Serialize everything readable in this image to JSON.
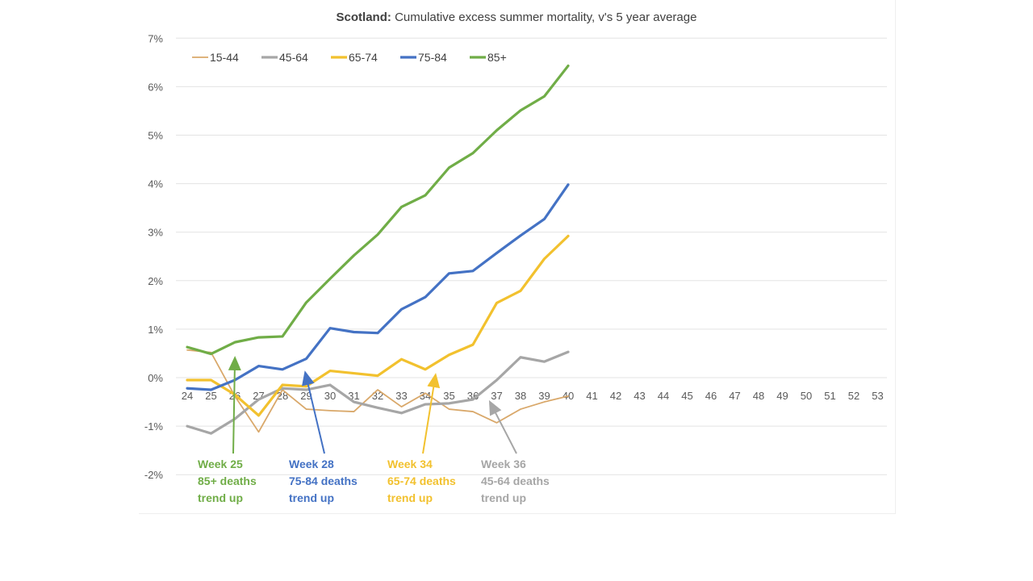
{
  "chart_data": {
    "type": "line",
    "title_bold": "Scotland:",
    "title_rest": "Cumulative excess summer mortality, v's 5 year average",
    "x_ticks": [
      "24",
      "25",
      "26",
      "27",
      "28",
      "29",
      "30",
      "31",
      "32",
      "33",
      "34",
      "35",
      "36",
      "37",
      "38",
      "39",
      "40",
      "41",
      "42",
      "43",
      "44",
      "45",
      "46",
      "47",
      "48",
      "49",
      "50",
      "51",
      "52",
      "53"
    ],
    "y_ticks": [
      "7%",
      "6%",
      "5%",
      "4%",
      "3%",
      "2%",
      "1%",
      "0%",
      "-1%",
      "-2%"
    ],
    "ylim": [
      -2,
      7
    ],
    "xlim": [
      24,
      53
    ],
    "grid": true,
    "legend_position": "top-left",
    "series": [
      {
        "name": "15-44",
        "color": "#d9a86a",
        "x": [
          24,
          25,
          26,
          27,
          28,
          29,
          30,
          31,
          32,
          33,
          34,
          35,
          36,
          37,
          38,
          39,
          40
        ],
        "values": [
          0.57,
          0.52,
          -0.38,
          -1.12,
          -0.25,
          -0.65,
          -0.68,
          -0.7,
          -0.25,
          -0.6,
          -0.32,
          -0.65,
          -0.7,
          -0.93,
          -0.65,
          -0.5,
          -0.38
        ]
      },
      {
        "name": "45-64",
        "color": "#a6a6a6",
        "x": [
          24,
          25,
          26,
          27,
          28,
          29,
          30,
          31,
          32,
          33,
          34,
          35,
          36,
          37,
          38,
          39,
          40
        ],
        "values": [
          -1.0,
          -1.15,
          -0.85,
          -0.45,
          -0.22,
          -0.25,
          -0.15,
          -0.5,
          -0.62,
          -0.73,
          -0.55,
          -0.53,
          -0.45,
          -0.05,
          0.42,
          0.33,
          0.53
        ]
      },
      {
        "name": "65-74",
        "color": "#f2c12e",
        "x": [
          24,
          25,
          26,
          27,
          28,
          29,
          30,
          31,
          32,
          33,
          34,
          35,
          36,
          37,
          38,
          39,
          40
        ],
        "values": [
          -0.05,
          -0.05,
          -0.35,
          -0.78,
          -0.15,
          -0.18,
          0.14,
          0.09,
          0.04,
          0.38,
          0.17,
          0.47,
          0.68,
          1.54,
          1.79,
          2.45,
          2.92
        ]
      },
      {
        "name": "75-84",
        "color": "#4472c4",
        "x": [
          24,
          25,
          26,
          27,
          28,
          29,
          30,
          31,
          32,
          33,
          34,
          35,
          36,
          37,
          38,
          39,
          40
        ],
        "values": [
          -0.22,
          -0.25,
          -0.05,
          0.24,
          0.17,
          0.39,
          1.02,
          0.94,
          0.92,
          1.41,
          1.66,
          2.15,
          2.2,
          2.57,
          2.93,
          3.27,
          3.98
        ]
      },
      {
        "name": "85+",
        "color": "#70ad47",
        "x": [
          24,
          25,
          26,
          27,
          28,
          29,
          30,
          31,
          32,
          33,
          34,
          35,
          36,
          37,
          38,
          39,
          40
        ],
        "values": [
          0.63,
          0.49,
          0.73,
          0.83,
          0.85,
          1.55,
          2.04,
          2.52,
          2.95,
          3.52,
          3.76,
          4.33,
          4.63,
          5.1,
          5.51,
          5.8,
          6.43
        ]
      }
    ],
    "annotations": [
      {
        "lines": [
          "Week 25",
          "85+ deaths",
          "trend up"
        ],
        "color": "#70ad47",
        "arrow_x": 26,
        "arrow_y": 0.45
      },
      {
        "lines": [
          "Week 28",
          "75-84 deaths",
          "trend up"
        ],
        "color": "#4472c4",
        "arrow_x": 29,
        "arrow_y": 0.15
      },
      {
        "lines": [
          "Week 34",
          "65-74 deaths",
          "trend up"
        ],
        "color": "#f2c12e",
        "arrow_x": 34.4,
        "arrow_y": 0.1
      },
      {
        "lines": [
          "Week 36",
          "45-64 deaths",
          "trend up"
        ],
        "color": "#a6a6a6",
        "arrow_x": 36.8,
        "arrow_y": -0.45
      }
    ]
  }
}
